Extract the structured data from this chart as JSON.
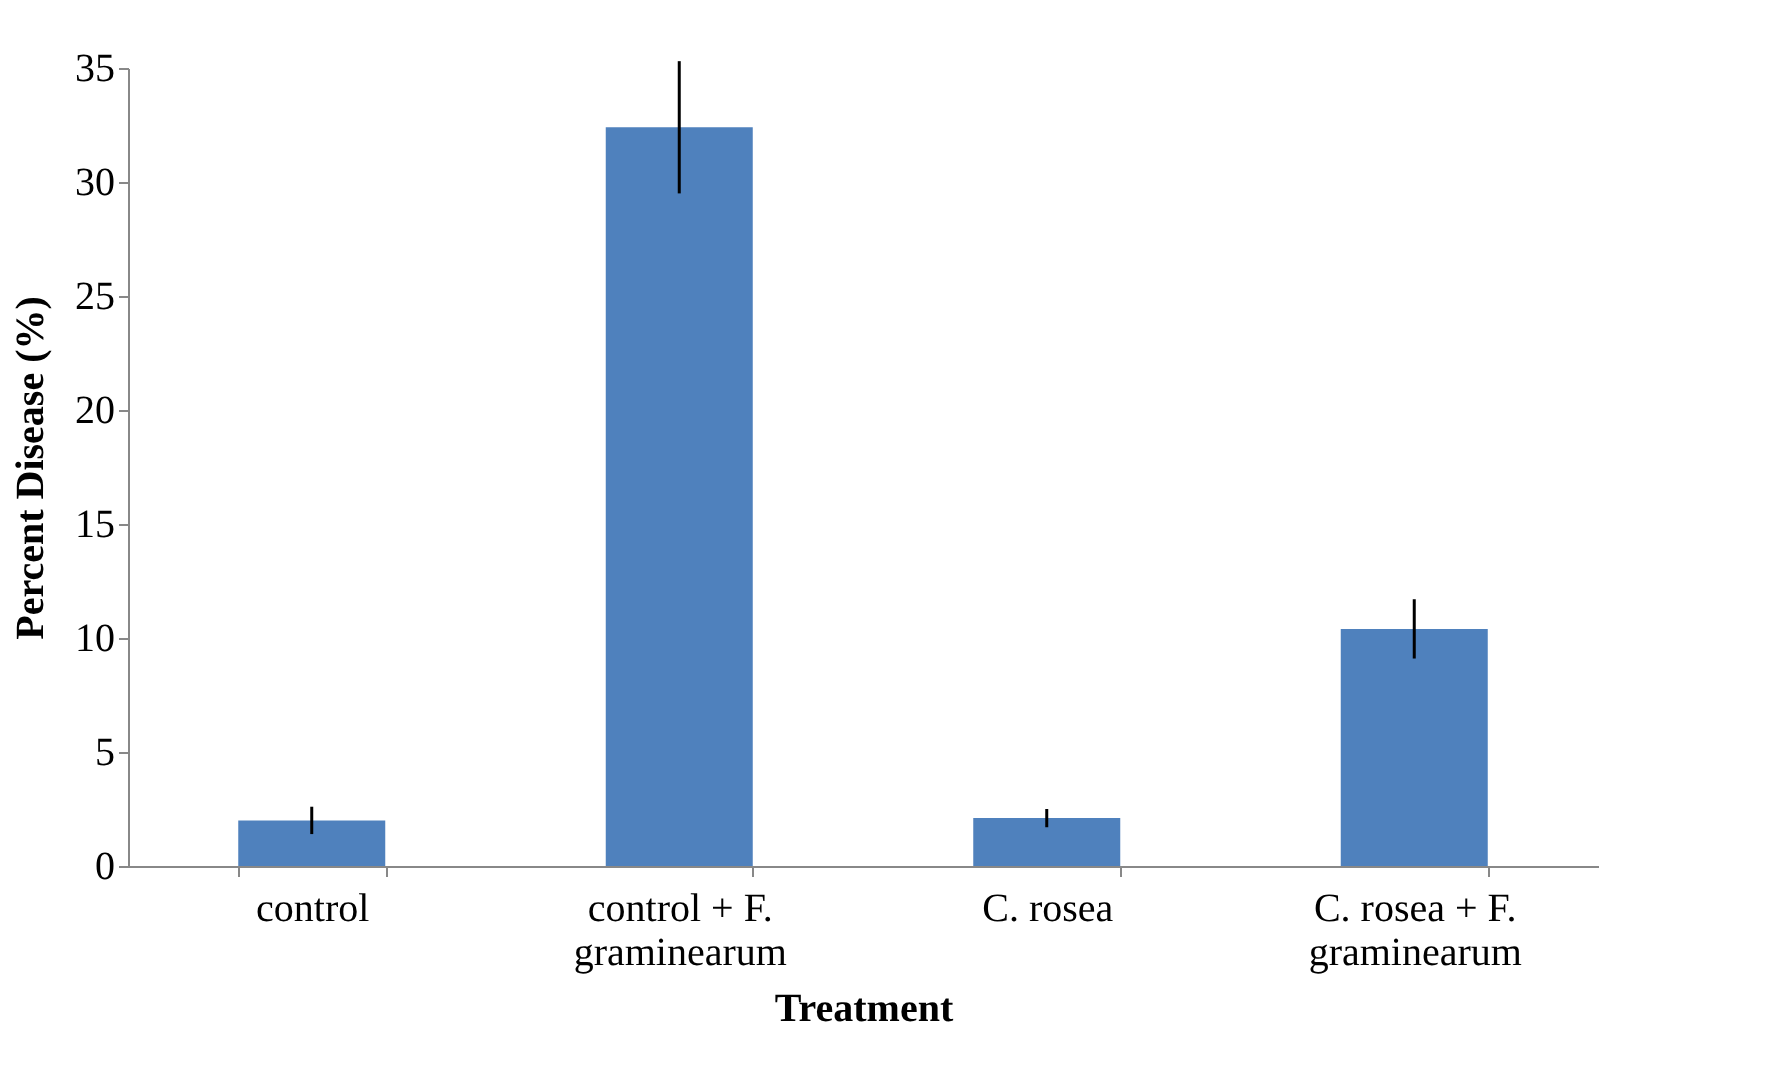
{
  "chart_data": {
    "type": "bar",
    "xlabel": "Treatment",
    "ylabel": "Percent Disease (%)",
    "categories": [
      "control",
      "control + F. graminearum",
      "C. rosea",
      "C. rosea + F. graminearum"
    ],
    "values": [
      2.0,
      32.4,
      2.1,
      10.4
    ],
    "errors": [
      0.6,
      2.9,
      0.4,
      1.3
    ],
    "color": "#4f81bd",
    "ylim": [
      0,
      35
    ],
    "yticks": [
      0,
      5,
      10,
      15,
      20,
      25,
      30,
      35
    ],
    "grid": false
  }
}
